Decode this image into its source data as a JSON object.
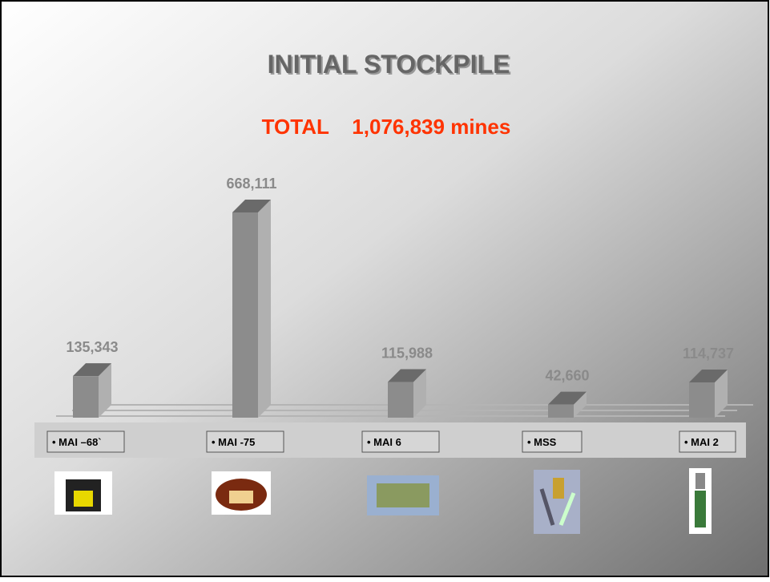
{
  "chart_data": {
    "type": "bar3d",
    "title": "INITIAL STOCKPILE",
    "subtitle": "TOTAL    1,076,839 mines",
    "categories": [
      "• MAI –68`",
      "• MAI -75",
      "• MAI 6",
      "• MSS",
      "• MAI 2"
    ],
    "values": [
      135343,
      668111,
      115988,
      42660,
      114737
    ],
    "value_labels": [
      "135,343",
      "668,111",
      "115,988",
      "42,660",
      "114,737"
    ],
    "color": "#8c8c8c"
  }
}
